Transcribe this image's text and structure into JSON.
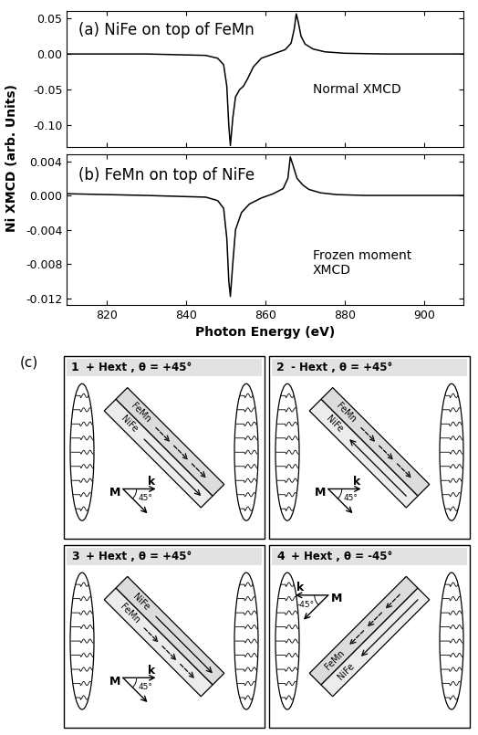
{
  "chart_data": [
    {
      "type": "line",
      "annotations": [
        "(a) NiFe on top of FeMn",
        "Normal XMCD"
      ],
      "y_label": "Ni XMCD (arb. Units)",
      "color": "#000000",
      "x": [
        810,
        830,
        845,
        848,
        849.5,
        850.3,
        850.8,
        851.2,
        851.8,
        852.5,
        853.5,
        854.5,
        855.5,
        857,
        859,
        862,
        865,
        866.5,
        867.3,
        867.8,
        868.3,
        869,
        870,
        872,
        875,
        880,
        890,
        900,
        910
      ],
      "values": [
        0.0,
        0.0,
        -0.002,
        -0.006,
        -0.015,
        -0.045,
        -0.1,
        -0.128,
        -0.09,
        -0.06,
        -0.05,
        -0.045,
        -0.035,
        -0.018,
        -0.006,
        0.0,
        0.006,
        0.015,
        0.035,
        0.056,
        0.045,
        0.025,
        0.014,
        0.007,
        0.003,
        0.001,
        0.0,
        0.0,
        0.0
      ],
      "xlim": [
        810,
        910
      ],
      "xticks": [
        820,
        840,
        860,
        880,
        900
      ],
      "ylim": [
        -0.13,
        0.06
      ],
      "yticks": [
        {
          "value": -0.1,
          "label": "-0.10"
        },
        {
          "value": -0.05,
          "label": "-0.05"
        },
        {
          "value": 0,
          "label": "0.00"
        },
        {
          "value": 0.05,
          "label": "0.05"
        }
      ],
      "tick_labels": "y"
    },
    {
      "type": "line",
      "annotations": [
        "(b) FeMn on top of NiFe",
        "Frozen moment\nXMCD"
      ],
      "x_label": "Photon Energy (eV)",
      "color": "#000000",
      "x": [
        810,
        830,
        845,
        848,
        849.5,
        850.3,
        850.8,
        851.2,
        851.8,
        852.5,
        854,
        856,
        859,
        862,
        864.5,
        865.7,
        866.3,
        867,
        868,
        869.5,
        871,
        874,
        878,
        885,
        895,
        910
      ],
      "values": [
        0.0002,
        0.0,
        -0.0002,
        -0.0006,
        -0.0015,
        -0.005,
        -0.01,
        -0.0118,
        -0.008,
        -0.004,
        -0.002,
        -0.001,
        -0.0003,
        0.0002,
        0.0008,
        0.002,
        0.0045,
        0.0035,
        0.002,
        0.0012,
        0.0007,
        0.0003,
        0.0001,
        0.0,
        0.0,
        0.0
      ],
      "xlim": [
        810,
        910
      ],
      "xticks": [
        820,
        840,
        860,
        880,
        900
      ],
      "ylim": [
        -0.0128,
        0.0048
      ],
      "yticks": [
        {
          "value": -0.012,
          "label": "-0.012"
        },
        {
          "value": -0.008,
          "label": "-0.008"
        },
        {
          "value": -0.004,
          "label": "-0.004"
        },
        {
          "value": 0,
          "label": "0.000"
        },
        {
          "value": 0.004,
          "label": "0.004"
        }
      ]
    }
  ],
  "diagram": {
    "label": "(c)",
    "panels": [
      {
        "number": "1",
        "condition": "+ Hext , θ = +45°",
        "top_layer": "FeMn",
        "bottom_layer": "NiFe",
        "moment": "M",
        "wavevector": "k",
        "angle": "45°"
      },
      {
        "number": "2",
        "condition": "- Hext , θ = +45°",
        "top_layer": "FeMn",
        "bottom_layer": "NiFe",
        "moment": "M",
        "wavevector": "k",
        "angle": "45°"
      },
      {
        "number": "3",
        "condition": "+ Hext , θ = +45°",
        "top_layer": "NiFe",
        "bottom_layer": "FeMn",
        "moment": "M",
        "wavevector": "k",
        "angle": "45°"
      },
      {
        "number": "4",
        "condition": "+ Hext , θ = -45°",
        "top_layer": "FeMn",
        "bottom_layer": "NiFe",
        "moment": "M",
        "wavevector": "k",
        "angle": "-45°"
      }
    ]
  }
}
